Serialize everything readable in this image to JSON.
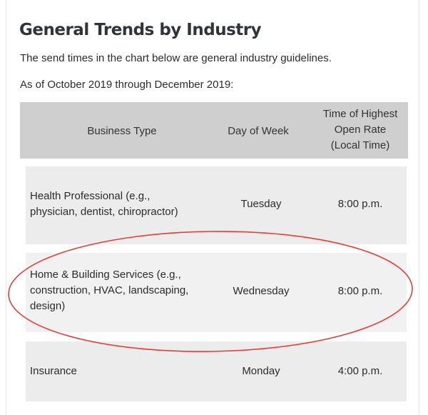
{
  "heading": "General Trends by Industry",
  "intro": {
    "line1": "The send times in the chart below are general industry guidelines.",
    "line2": "As of October 2019 through December 2019:"
  },
  "table": {
    "headers": {
      "business": "Business Type",
      "day": "Day of Week",
      "time_line1": "Time of Highest",
      "time_line2": "Open Rate",
      "time_line3": "(Local Time)"
    },
    "rows": [
      {
        "business_line1": "Health Professional (e.g.,",
        "business_line2": "physician, dentist, chiropractor)",
        "business_line3": "",
        "day": "Tuesday",
        "time": "8:00 p.m."
      },
      {
        "business_line1": "Home & Building Services (e.g.,",
        "business_line2": "construction, HVAC, landscaping,",
        "business_line3": "design)",
        "day": "Wednesday",
        "time": "8:00 p.m."
      },
      {
        "business_line1": "Insurance",
        "business_line2": "",
        "business_line3": "",
        "day": "Monday",
        "time": "4:00 p.m."
      }
    ]
  },
  "colors": {
    "header_bg": "#cfcfcf",
    "row_bg": "#ececec",
    "highlight": "#e0403a"
  }
}
